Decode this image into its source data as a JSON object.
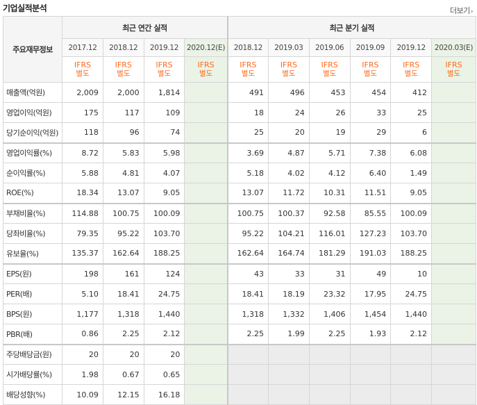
{
  "title": "기업실적분석",
  "more_label": "더보기",
  "headers": {
    "row_label": "주요재무정보",
    "annual_group": "최근 연간 실적",
    "quarter_group": "최근 분기 실적",
    "annual_periods": [
      "2017.12",
      "2018.12",
      "2019.12",
      "2020.12(E)"
    ],
    "quarter_periods": [
      "2018.12",
      "2019.03",
      "2019.06",
      "2019.09",
      "2019.12",
      "2020.03(E)"
    ],
    "ifrs": "IFRS",
    "sep": "별도"
  },
  "rows": [
    {
      "label": "매출액(억원)",
      "annual": [
        "2,009",
        "2,000",
        "1,814",
        ""
      ],
      "quarter": [
        "491",
        "496",
        "453",
        "454",
        "412",
        ""
      ]
    },
    {
      "label": "영업이익(억원)",
      "annual": [
        "175",
        "117",
        "109",
        ""
      ],
      "quarter": [
        "18",
        "24",
        "26",
        "33",
        "25",
        ""
      ]
    },
    {
      "label": "당기순이익(억원)",
      "annual": [
        "118",
        "96",
        "74",
        ""
      ],
      "quarter": [
        "25",
        "20",
        "19",
        "29",
        "6",
        ""
      ]
    },
    {
      "label": "영업이익률(%)",
      "annual": [
        "8.72",
        "5.83",
        "5.98",
        ""
      ],
      "quarter": [
        "3.69",
        "4.87",
        "5.71",
        "7.38",
        "6.08",
        ""
      ]
    },
    {
      "label": "순이익률(%)",
      "annual": [
        "5.88",
        "4.81",
        "4.07",
        ""
      ],
      "quarter": [
        "5.18",
        "4.02",
        "4.12",
        "6.40",
        "1.49",
        ""
      ]
    },
    {
      "label": "ROE(%)",
      "annual": [
        "18.34",
        "13.07",
        "9.05",
        ""
      ],
      "quarter": [
        "13.07",
        "11.72",
        "10.31",
        "11.51",
        "9.05",
        ""
      ]
    },
    {
      "label": "부채비율(%)",
      "annual": [
        "114.88",
        "100.75",
        "100.09",
        ""
      ],
      "quarter": [
        "100.75",
        "100.37",
        "92.58",
        "85.55",
        "100.09",
        ""
      ]
    },
    {
      "label": "당좌비율(%)",
      "annual": [
        "79.35",
        "95.22",
        "103.70",
        ""
      ],
      "quarter": [
        "95.22",
        "104.21",
        "116.01",
        "127.23",
        "103.70",
        ""
      ]
    },
    {
      "label": "유보율(%)",
      "annual": [
        "135.37",
        "162.64",
        "188.25",
        ""
      ],
      "quarter": [
        "162.64",
        "164.74",
        "181.29",
        "191.03",
        "188.25",
        ""
      ]
    },
    {
      "label": "EPS(원)",
      "annual": [
        "198",
        "161",
        "124",
        ""
      ],
      "quarter": [
        "43",
        "33",
        "31",
        "49",
        "10",
        ""
      ]
    },
    {
      "label": "PER(배)",
      "annual": [
        "5.10",
        "18.41",
        "24.75",
        ""
      ],
      "quarter": [
        "18.41",
        "18.19",
        "23.32",
        "17.95",
        "24.75",
        ""
      ]
    },
    {
      "label": "BPS(원)",
      "annual": [
        "1,177",
        "1,318",
        "1,440",
        ""
      ],
      "quarter": [
        "1,318",
        "1,332",
        "1,406",
        "1,454",
        "1,440",
        ""
      ]
    },
    {
      "label": "PBR(배)",
      "annual": [
        "0.86",
        "2.25",
        "2.12",
        ""
      ],
      "quarter": [
        "2.25",
        "1.99",
        "2.25",
        "1.93",
        "2.12",
        ""
      ]
    },
    {
      "label": "주당배당금(원)",
      "annual": [
        "20",
        "20",
        "20",
        ""
      ],
      "quarter": [
        "",
        "",
        "",
        "",
        "",
        ""
      ]
    },
    {
      "label": "시가배당률(%)",
      "annual": [
        "1.98",
        "0.67",
        "0.65",
        ""
      ],
      "quarter": [
        "",
        "",
        "",
        "",
        "",
        ""
      ]
    },
    {
      "label": "배당성향(%)",
      "annual": [
        "10.09",
        "12.15",
        "16.18",
        ""
      ],
      "quarter": [
        "",
        "",
        "",
        "",
        "",
        ""
      ]
    }
  ],
  "colors": {
    "ifrs": "#ff6a1a",
    "estimate_bg": "#eaf3e6",
    "dividend_quarter_bg": "#ececec"
  }
}
